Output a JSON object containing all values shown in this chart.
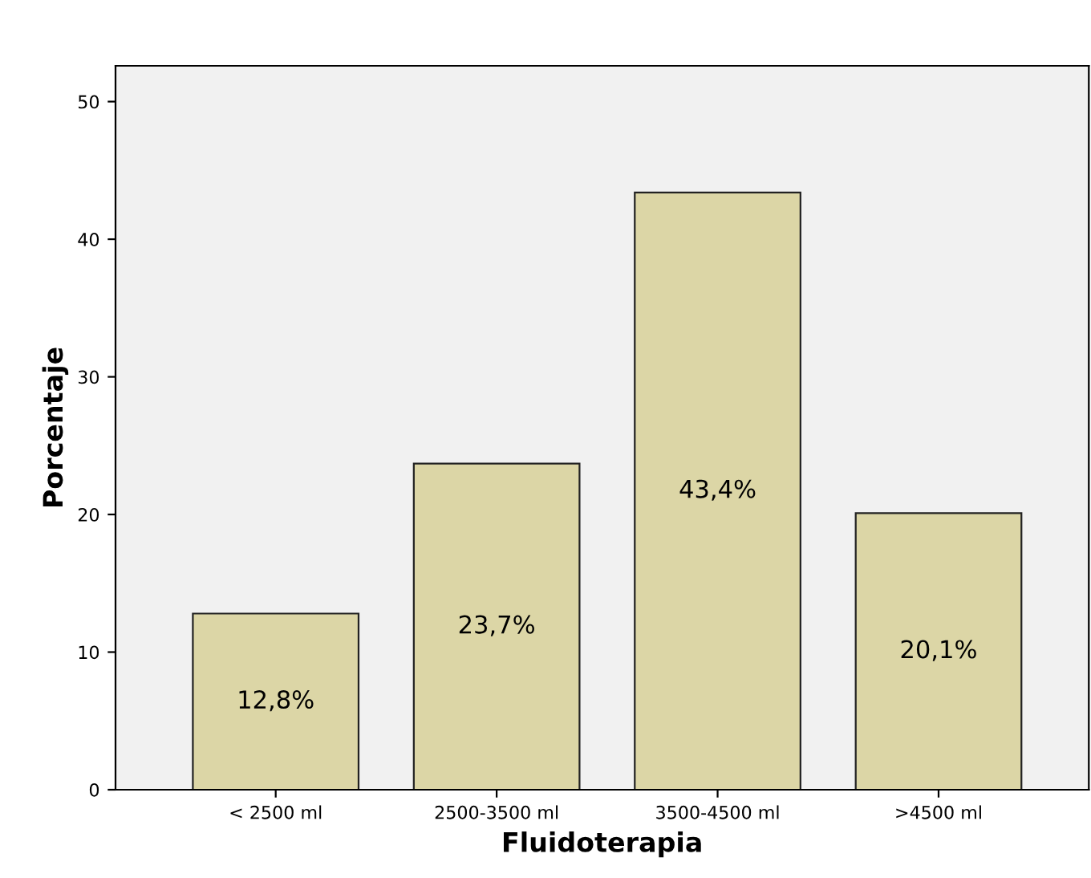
{
  "chart_data": {
    "type": "bar",
    "xlabel": "Fluidoterapia",
    "ylabel": "Porcentaje",
    "categories": [
      "< 2500 ml",
      "2500-3500 ml",
      "3500-4500 ml",
      ">4500 ml"
    ],
    "values": [
      12.8,
      23.7,
      43.4,
      20.1
    ],
    "value_labels": [
      "12,8%",
      "23,7%",
      "43,4%",
      "20,1%"
    ],
    "color": "#dcd6a6",
    "ylim": [
      0,
      52.6
    ],
    "yticks": [
      0,
      10,
      20,
      30,
      40,
      50
    ],
    "grid": false,
    "legend": false
  }
}
